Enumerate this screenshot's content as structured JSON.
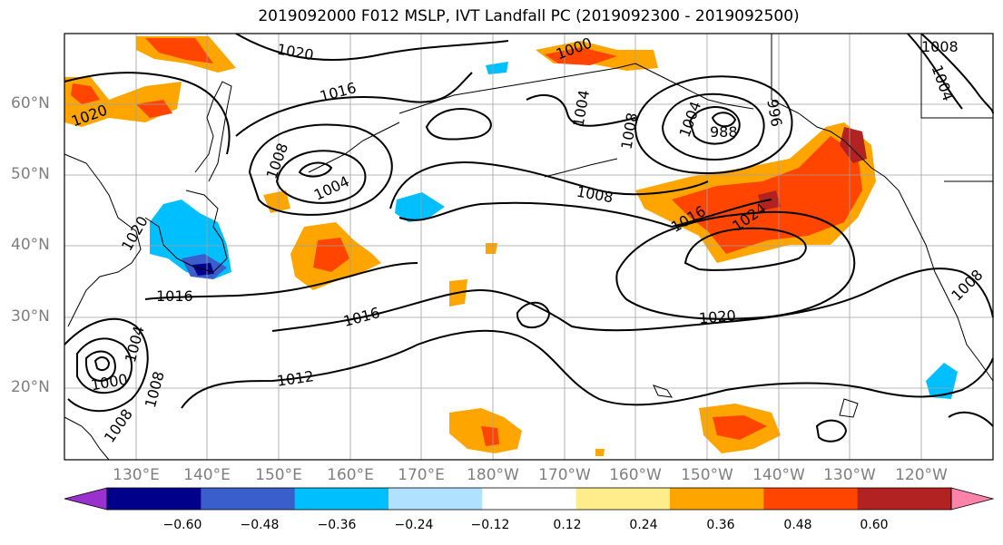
{
  "title": "2019092000 F012 MSLP, IVT Landfall PC (2019092300 - 2019092500)",
  "lat_labels": [
    "60°N",
    "50°N",
    "40°N",
    "30°N",
    "20°N"
  ],
  "lon_labels": [
    "130°E",
    "140°E",
    "150°E",
    "160°E",
    "170°E",
    "180°W",
    "170°W",
    "160°W",
    "150°W",
    "140°W",
    "130°W",
    "120°W"
  ],
  "colorbar": {
    "colors": [
      "#9932cc",
      "#00008b",
      "#3a5fcd",
      "#00bfff",
      "#b0e2ff",
      "#ffffff",
      "#ffec8b",
      "#ffa500",
      "#ff4500",
      "#b22222",
      "#ff82ab"
    ],
    "tick_labels": [
      "−0.60",
      "−0.48",
      "−0.36",
      "−0.24",
      "−0.12",
      "0.12",
      "0.24",
      "0.36",
      "0.48",
      "0.60"
    ]
  },
  "contour_labels": [
    "1020",
    "1000",
    "1008",
    "1004",
    "1016",
    "1020",
    "1008",
    "1004",
    "1004",
    "1008",
    "988",
    "996",
    "1004",
    "1008",
    "1016",
    "1024",
    "1020",
    "1016",
    "1020",
    "1016",
    "1012",
    "1008",
    "1008",
    "1004",
    "1008",
    "1000"
  ]
}
